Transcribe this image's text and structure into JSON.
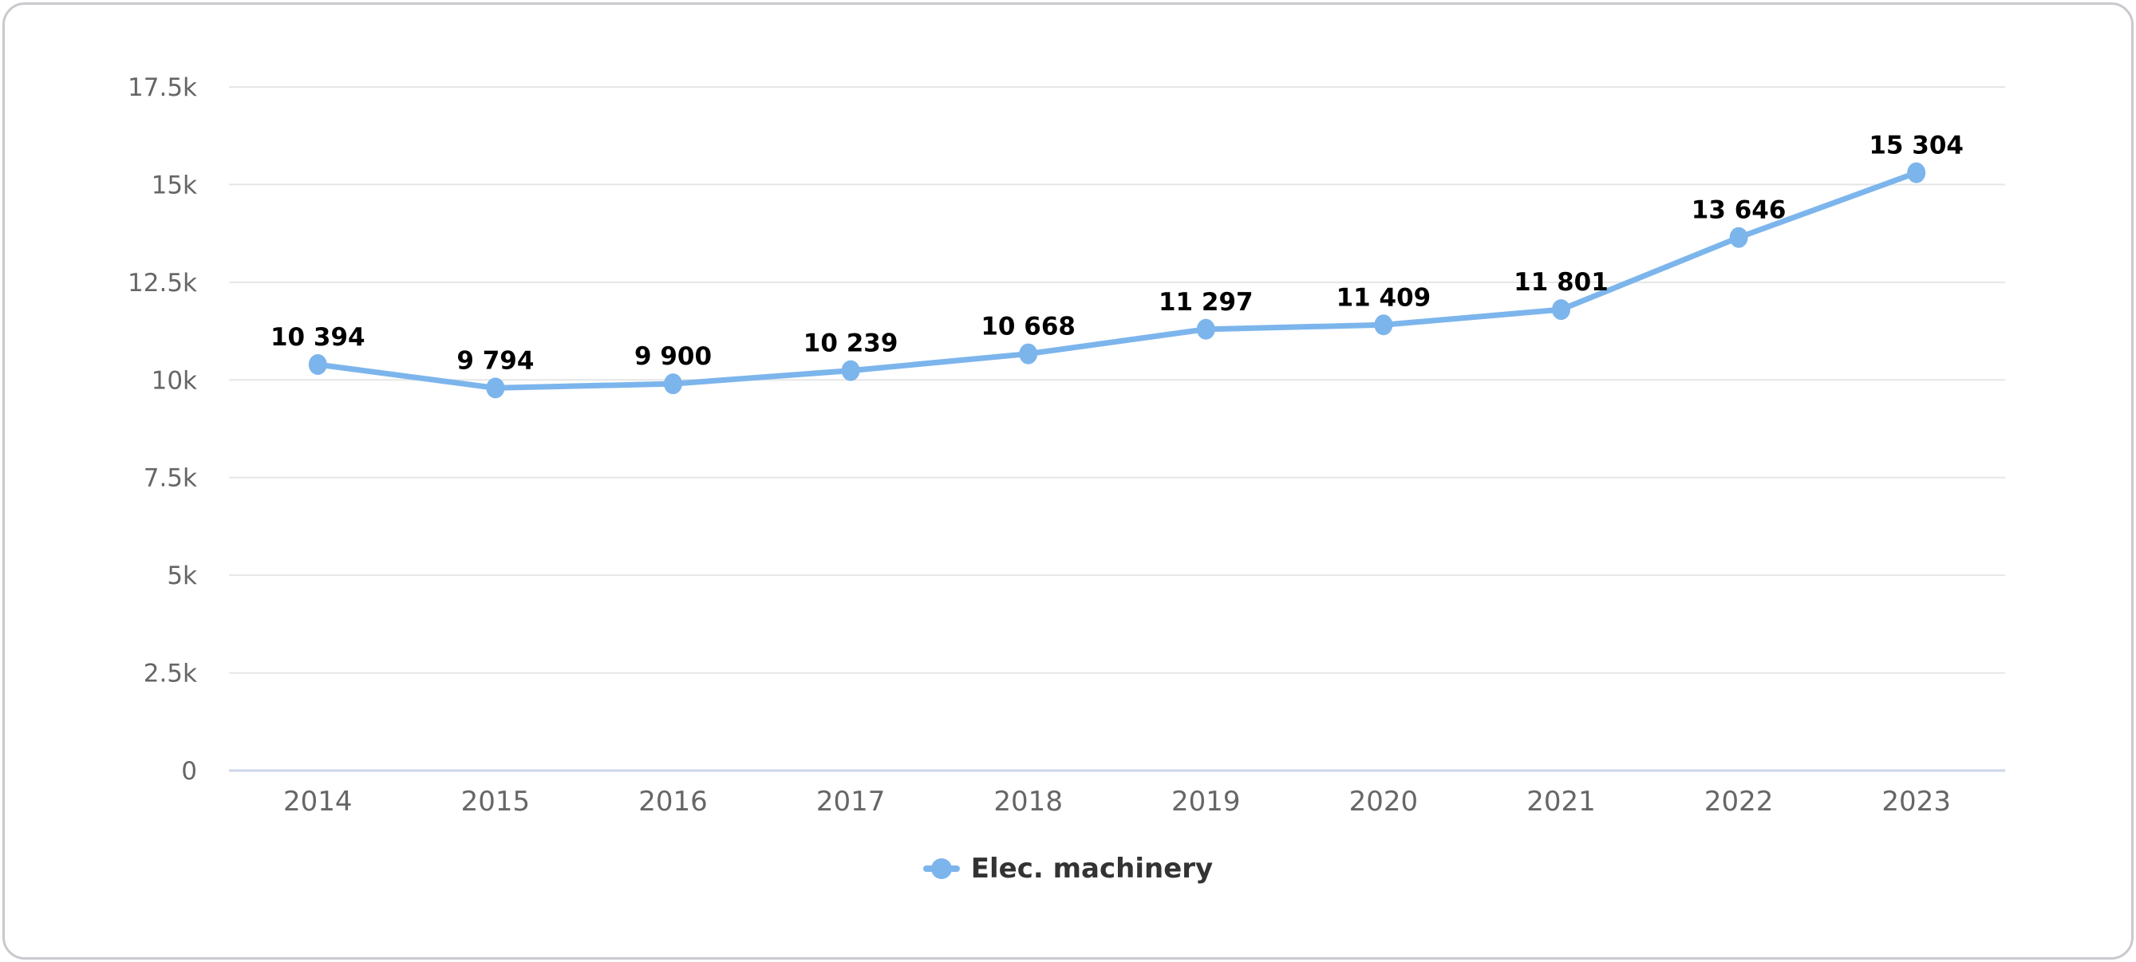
{
  "chart_data": {
    "type": "line",
    "title": "",
    "categories": [
      "2014",
      "2015",
      "2016",
      "2017",
      "2018",
      "2019",
      "2020",
      "2021",
      "2022",
      "2023"
    ],
    "series": [
      {
        "name": "Elec. machinery",
        "values": [
          10394,
          9794,
          9900,
          10239,
          10668,
          11297,
          11409,
          11801,
          13646,
          15304
        ],
        "color": "#7cb5ec"
      }
    ],
    "data_labels": [
      "10 394",
      "9 794",
      "9 900",
      "10 239",
      "10 668",
      "11 297",
      "11 409",
      "11 801",
      "13 646",
      "15 304"
    ],
    "y_ticks": [
      {
        "value": 0,
        "label": "0"
      },
      {
        "value": 2500,
        "label": "2.5k"
      },
      {
        "value": 5000,
        "label": "5k"
      },
      {
        "value": 7500,
        "label": "7.5k"
      },
      {
        "value": 10000,
        "label": "10k"
      },
      {
        "value": 12500,
        "label": "12.5k"
      },
      {
        "value": 15000,
        "label": "15k"
      },
      {
        "value": 17500,
        "label": "17.5k"
      }
    ],
    "ylim": [
      0,
      17500
    ],
    "grid": true,
    "legend_position": "bottom-center"
  },
  "legend": {
    "label": "Elec. machinery"
  },
  "colors": {
    "line": "#7cb5ec",
    "marker": "#7cb5ec",
    "grid_line": "#e6e6e6",
    "axis_line": "#ccd6eb",
    "tick_label": "#666666",
    "data_label": "#000000",
    "legend_text": "#333333",
    "card_border": "#c9c9ce",
    "background": "#ffffff"
  }
}
